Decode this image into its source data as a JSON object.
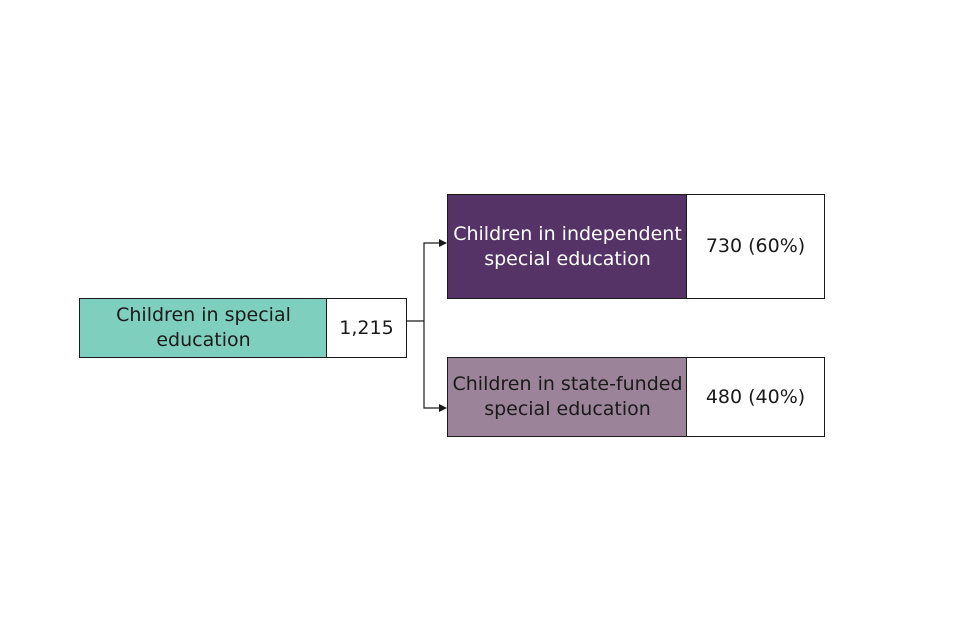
{
  "root": {
    "label": "Children in special\neducation",
    "value": "1,215",
    "color": "#7fcfbf"
  },
  "children": [
    {
      "label": "Children in independent\nspecial education",
      "value": "730 (60%)",
      "color": "#553366"
    },
    {
      "label": "Children in state-funded\nspecial education",
      "value": "480 (40%)",
      "color": "#9b8399"
    }
  ]
}
